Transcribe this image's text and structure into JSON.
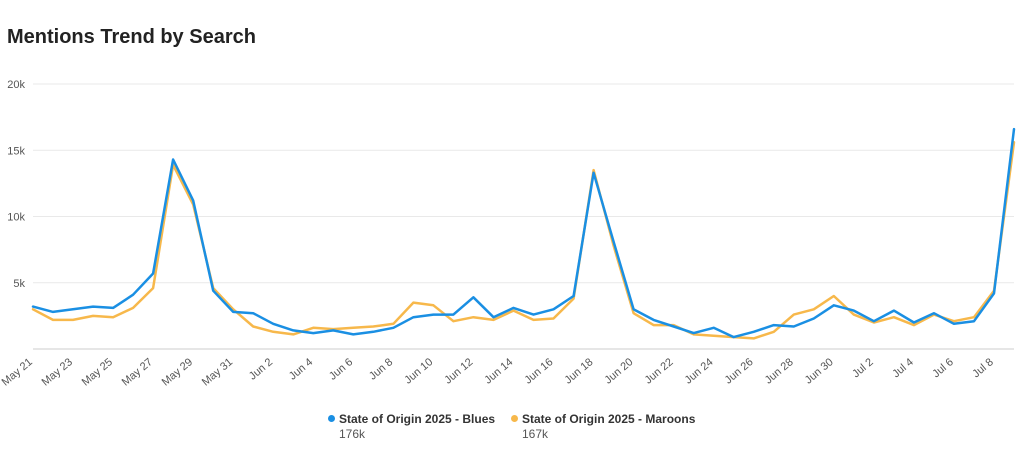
{
  "chart_data": {
    "type": "line",
    "title": "Mentions Trend by Search",
    "ylim": [
      0,
      20000
    ],
    "yticks": [
      5000,
      10000,
      15000,
      20000
    ],
    "ytick_labels": [
      "5k",
      "10k",
      "15k",
      "20k"
    ],
    "grid": true,
    "legend_position": "bottom",
    "x": [
      "May 21",
      "May 22",
      "May 23",
      "May 24",
      "May 25",
      "May 26",
      "May 27",
      "May 28",
      "May 29",
      "May 30",
      "May 31",
      "Jun 1",
      "Jun 2",
      "Jun 3",
      "Jun 4",
      "Jun 5",
      "Jun 6",
      "Jun 7",
      "Jun 8",
      "Jun 9",
      "Jun 10",
      "Jun 11",
      "Jun 12",
      "Jun 13",
      "Jun 14",
      "Jun 15",
      "Jun 16",
      "Jun 17",
      "Jun 18",
      "Jun 19",
      "Jun 20",
      "Jun 21",
      "Jun 22",
      "Jun 23",
      "Jun 24",
      "Jun 25",
      "Jun 26",
      "Jun 27",
      "Jun 28",
      "Jun 29",
      "Jun 30",
      "Jul 1",
      "Jul 2",
      "Jul 3",
      "Jul 4",
      "Jul 5",
      "Jul 6",
      "Jul 7",
      "Jul 8",
      "Jul 9"
    ],
    "xtick_labels": [
      "May 21",
      "May 23",
      "May 25",
      "May 27",
      "May 29",
      "May 31",
      "Jun 2",
      "Jun 4",
      "Jun 6",
      "Jun 8",
      "Jun 10",
      "Jun 12",
      "Jun 14",
      "Jun 16",
      "Jun 18",
      "Jun 20",
      "Jun 22",
      "Jun 24",
      "Jun 26",
      "Jun 28",
      "Jun 30",
      "Jul 2",
      "Jul 4",
      "Jul 6",
      "Jul 8"
    ],
    "series": [
      {
        "name": "State of Origin 2025 - Blues",
        "total": "176k",
        "color": "#1a8fe3",
        "values": [
          3200,
          2800,
          3000,
          3200,
          3100,
          4100,
          5700,
          14300,
          11200,
          4400,
          2800,
          2700,
          1900,
          1400,
          1200,
          1400,
          1100,
          1300,
          1600,
          2400,
          2600,
          2600,
          3900,
          2400,
          3100,
          2600,
          3000,
          4000,
          13300,
          8100,
          3000,
          2200,
          1700,
          1200,
          1600,
          900,
          1300,
          1800,
          1700,
          2300,
          3300,
          2900,
          2100,
          2900,
          2000,
          2700,
          1900,
          2100,
          4200,
          16600
        ]
      },
      {
        "name": "State of Origin 2025 - Maroons",
        "total": "167k",
        "color": "#f7b84b",
        "values": [
          3000,
          2200,
          2200,
          2500,
          2400,
          3100,
          4600,
          13900,
          10900,
          4600,
          3000,
          1700,
          1300,
          1100,
          1600,
          1500,
          1600,
          1700,
          1900,
          3500,
          3300,
          2100,
          2400,
          2200,
          2900,
          2200,
          2300,
          3800,
          13500,
          7800,
          2700,
          1800,
          1800,
          1100,
          1000,
          900,
          800,
          1300,
          2600,
          3000,
          4000,
          2600,
          2000,
          2400,
          1800,
          2600,
          2100,
          2400,
          4400,
          15600
        ]
      }
    ]
  }
}
